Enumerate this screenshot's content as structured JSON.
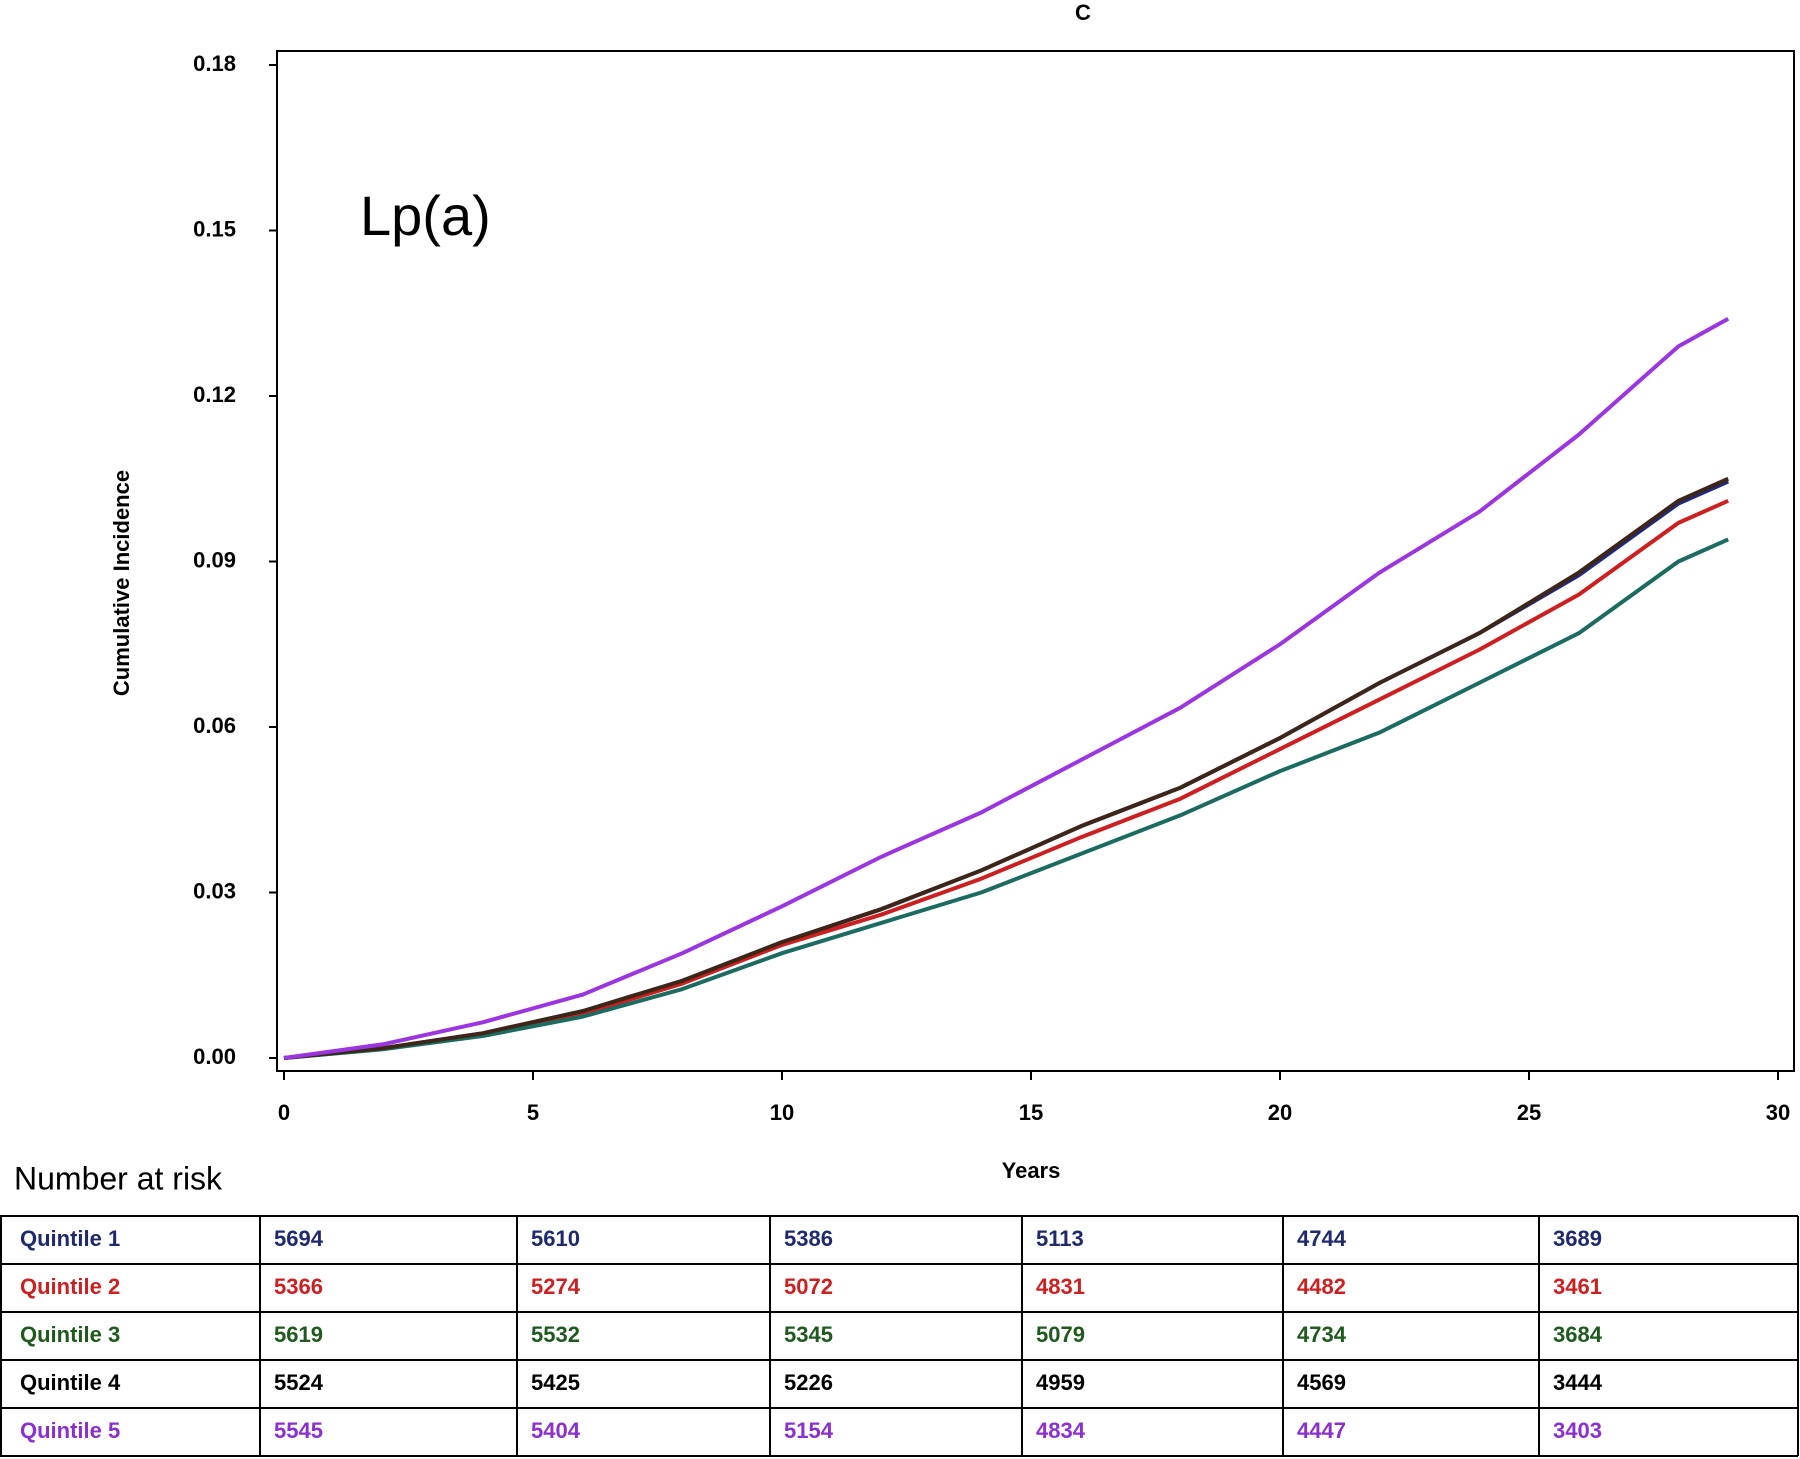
{
  "chart_data": {
    "type": "line",
    "title": "C",
    "annotation": "Lp(a)",
    "y_label": "Cumulative Incidence",
    "x_label": "Years",
    "x": [
      0,
      2,
      4,
      6,
      8,
      10,
      12,
      14,
      16,
      18,
      20,
      22,
      24,
      26,
      28,
      29
    ],
    "series": [
      {
        "name": "Quintile 1",
        "color": "#1f2a80",
        "values": [
          0,
          0.0018,
          0.0045,
          0.0085,
          0.014,
          0.021,
          0.027,
          0.034,
          0.042,
          0.049,
          0.058,
          0.068,
          0.077,
          0.0875,
          0.1005,
          0.1045
        ]
      },
      {
        "name": "Quintile 2",
        "color": "#cc1f1f",
        "values": [
          0,
          0.0017,
          0.0043,
          0.008,
          0.0135,
          0.0205,
          0.026,
          0.0325,
          0.04,
          0.047,
          0.056,
          0.065,
          0.074,
          0.084,
          0.097,
          0.101
        ]
      },
      {
        "name": "Quintile 3",
        "color": "#1b6b60",
        "values": [
          0,
          0.0016,
          0.004,
          0.0075,
          0.0125,
          0.019,
          0.0245,
          0.03,
          0.037,
          0.044,
          0.052,
          0.059,
          0.068,
          0.077,
          0.09,
          0.094
        ]
      },
      {
        "name": "Quintile 4",
        "color": "#3d2618",
        "values": [
          0,
          0.0018,
          0.0045,
          0.0085,
          0.014,
          0.021,
          0.027,
          0.034,
          0.042,
          0.049,
          0.058,
          0.068,
          0.077,
          0.088,
          0.101,
          0.105
        ]
      },
      {
        "name": "Quintile 5",
        "color": "#9b35e0",
        "values": [
          0,
          0.0025,
          0.0065,
          0.0115,
          0.019,
          0.0275,
          0.0365,
          0.0445,
          0.054,
          0.0635,
          0.075,
          0.088,
          0.099,
          0.113,
          0.129,
          0.134
        ]
      }
    ],
    "xlim": [
      0,
      30
    ],
    "xticks": [
      0,
      5,
      10,
      15,
      20,
      25,
      30
    ],
    "ylim": [
      0,
      0.18
    ],
    "yticks": [
      {
        "value": 0,
        "label": "0.00"
      },
      0.03,
      0.06,
      0.09,
      0.12,
      0.15,
      0.18
    ]
  },
  "risk_table": {
    "title": "Number at risk",
    "rows": [
      {
        "color": "#1f2a6e",
        "counts": [
          5694,
          5610,
          5386,
          5113,
          4744,
          3689
        ]
      },
      {
        "color": "#cc1f1f",
        "counts": [
          5366,
          5274,
          5072,
          4831,
          4482,
          3461
        ]
      },
      {
        "color": "#1e5a1e",
        "counts": [
          5619,
          5532,
          5345,
          5079,
          4734,
          3684
        ]
      },
      {
        "color": "#000000",
        "counts": [
          5524,
          5425,
          5226,
          4959,
          4569,
          3444
        ]
      },
      {
        "color": "#8a2fd0",
        "counts": [
          5545,
          5404,
          5154,
          4834,
          4447,
          3403
        ]
      }
    ]
  }
}
